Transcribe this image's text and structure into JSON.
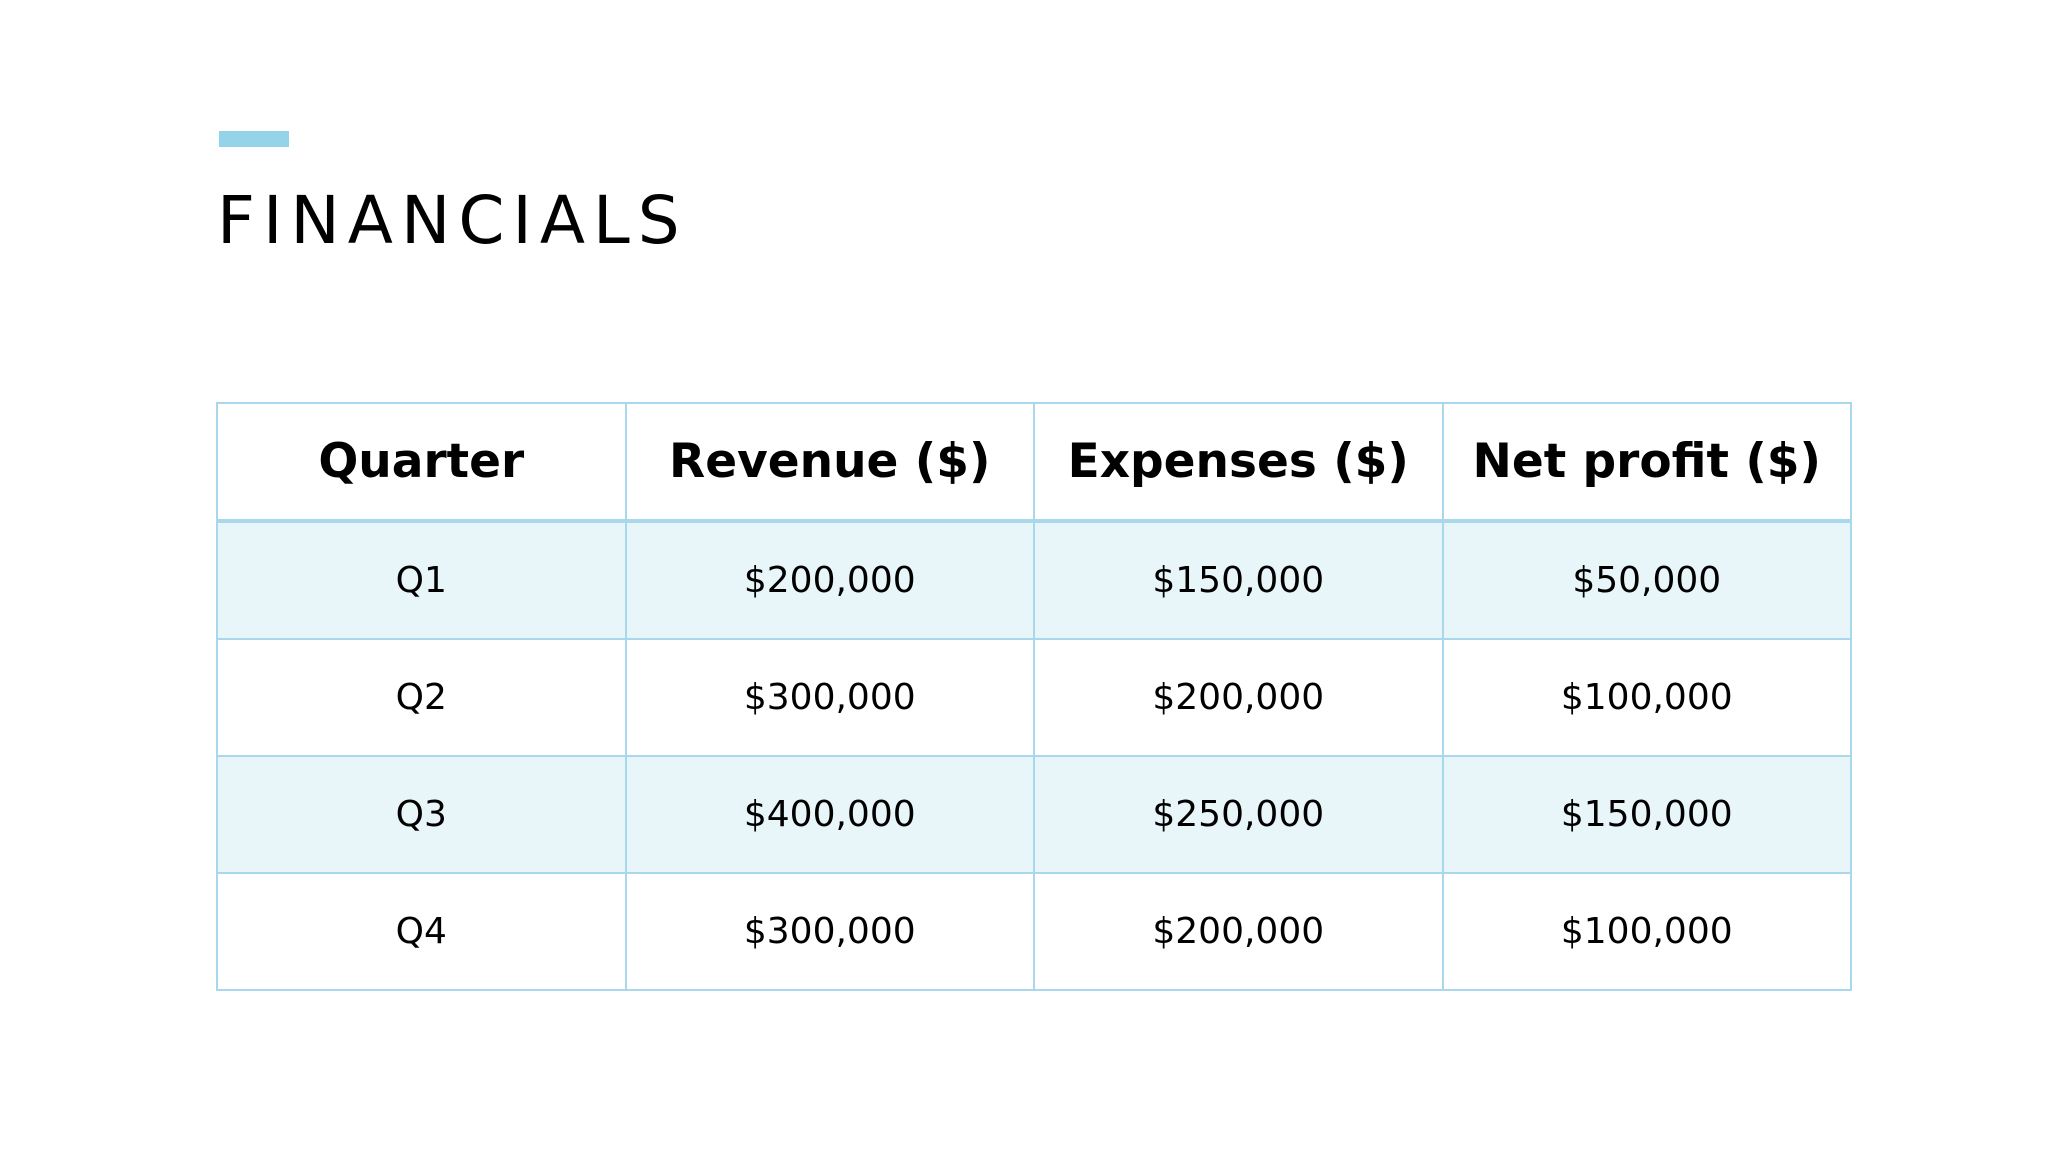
{
  "slide": {
    "title": "FINANCIALS",
    "accent_color": "#94d3ea"
  },
  "table": {
    "headers": [
      "Quarter",
      "Revenue ($)",
      "Expenses ($)",
      "Net profit ($)"
    ],
    "rows": [
      [
        "Q1",
        "$200,000",
        "$150,000",
        "$50,000"
      ],
      [
        "Q2",
        "$300,000",
        "$200,000",
        "$100,000"
      ],
      [
        "Q3",
        "$400,000",
        "$250,000",
        "$150,000"
      ],
      [
        "Q4",
        "$300,000",
        "$200,000",
        "$100,000"
      ]
    ],
    "border_color": "#a9d7eb",
    "band_color": "#e8f6f9"
  }
}
